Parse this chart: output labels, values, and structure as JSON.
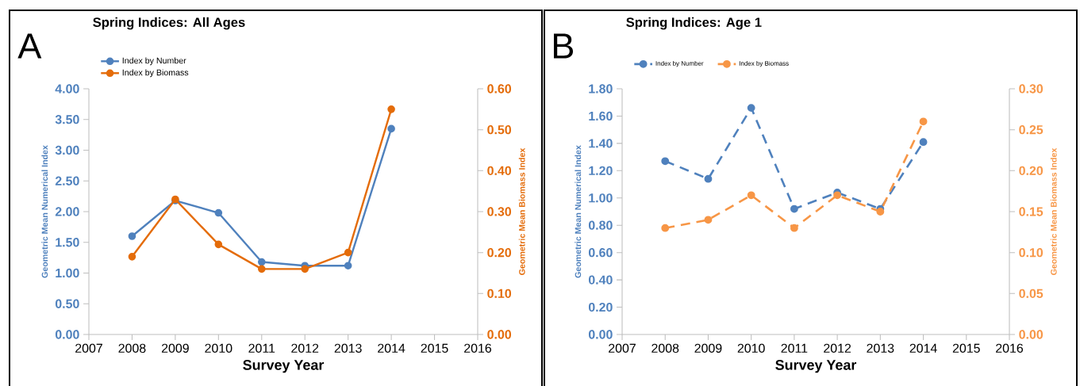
{
  "chart_data": [
    {
      "type": "line",
      "title": "Spring Indices:  All Ages",
      "xlabel": "Survey Year",
      "ylabel": "Geometric Mean Numerical Index",
      "y2label": "Geometric Mean Biomass Index",
      "annotations": [
        "A"
      ],
      "x": [
        2008,
        2009,
        2010,
        2011,
        2012,
        2013,
        2014
      ],
      "xlim": [
        2007,
        2016
      ],
      "xticks": [
        2007,
        2008,
        2009,
        2010,
        2011,
        2012,
        2013,
        2014,
        2015,
        2016
      ],
      "ylim": [
        0,
        4
      ],
      "yticks": [
        {
          "value": 0,
          "label": "0.00"
        },
        {
          "value": 0.5,
          "label": "0.50"
        },
        {
          "value": 1,
          "label": "1.00"
        },
        {
          "value": 1.5,
          "label": "1.50"
        },
        {
          "value": 2,
          "label": "2.00"
        },
        {
          "value": 2.5,
          "label": "2.50"
        },
        {
          "value": 3,
          "label": "3.00"
        },
        {
          "value": 3.5,
          "label": "3.50"
        },
        {
          "value": 4,
          "label": "4.00"
        }
      ],
      "y2lim": [
        0,
        0.6
      ],
      "y2ticks": [
        {
          "value": 0,
          "label": "0.00"
        },
        {
          "value": 0.1,
          "label": "0.10"
        },
        {
          "value": 0.2,
          "label": "0.20"
        },
        {
          "value": 0.3,
          "label": "0.30"
        },
        {
          "value": 0.4,
          "label": "0.40"
        },
        {
          "value": 0.5,
          "label": "0.50"
        },
        {
          "value": 0.6,
          "label": "0.60"
        }
      ],
      "legend": "top left",
      "marker": "circle",
      "line_style": "solid",
      "series": [
        {
          "name": "Index by Number",
          "color": "#4f81bd",
          "values": [
            1.6,
            2.18,
            1.98,
            1.18,
            1.12,
            1.12,
            3.35
          ]
        },
        {
          "name": "Index by Biomass",
          "color": "#e46c0a",
          "axis": "y2",
          "values": [
            0.19,
            0.33,
            0.22,
            0.16,
            0.16,
            0.2,
            0.55
          ]
        }
      ]
    },
    {
      "type": "line",
      "title": "Spring Indices:  Age 1",
      "xlabel": "Survey Year",
      "ylabel": "Geometric Mean Numerical Index",
      "y2label": "Geometric Mean Biomass Index",
      "annotations": [
        "B"
      ],
      "x": [
        2008,
        2009,
        2010,
        2011,
        2012,
        2013,
        2014
      ],
      "xlim": [
        2007,
        2016
      ],
      "xticks": [
        2007,
        2008,
        2009,
        2010,
        2011,
        2012,
        2013,
        2014,
        2015,
        2016
      ],
      "ylim": [
        0,
        1.8
      ],
      "yticks": [
        {
          "value": 0,
          "label": "0.00"
        },
        {
          "value": 0.2,
          "label": "0.20"
        },
        {
          "value": 0.4,
          "label": "0.40"
        },
        {
          "value": 0.6,
          "label": "0.60"
        },
        {
          "value": 0.8,
          "label": "0.80"
        },
        {
          "value": 1,
          "label": "1.00"
        },
        {
          "value": 1.2,
          "label": "1.20"
        },
        {
          "value": 1.4,
          "label": "1.40"
        },
        {
          "value": 1.6,
          "label": "1.60"
        },
        {
          "value": 1.8,
          "label": "1.80"
        }
      ],
      "y2lim": [
        0,
        0.3
      ],
      "y2ticks": [
        {
          "value": 0,
          "label": "0.00"
        },
        {
          "value": 0.05,
          "label": "0.05"
        },
        {
          "value": 0.1,
          "label": "0.10"
        },
        {
          "value": 0.15,
          "label": "0.15"
        },
        {
          "value": 0.2,
          "label": "0.20"
        },
        {
          "value": 0.25,
          "label": "0.25"
        },
        {
          "value": 0.3,
          "label": "0.30"
        }
      ],
      "legend": "top left",
      "marker": "circle",
      "line_style": "dashed",
      "series": [
        {
          "name": "Index by Number",
          "color": "#4f81bd",
          "values": [
            1.27,
            1.14,
            1.66,
            0.92,
            1.04,
            0.92,
            1.41
          ]
        },
        {
          "name": "Index by Biomass",
          "color": "#f79646",
          "axis": "y2",
          "values": [
            0.13,
            0.14,
            0.17,
            0.13,
            0.17,
            0.15,
            0.26
          ]
        }
      ]
    }
  ]
}
